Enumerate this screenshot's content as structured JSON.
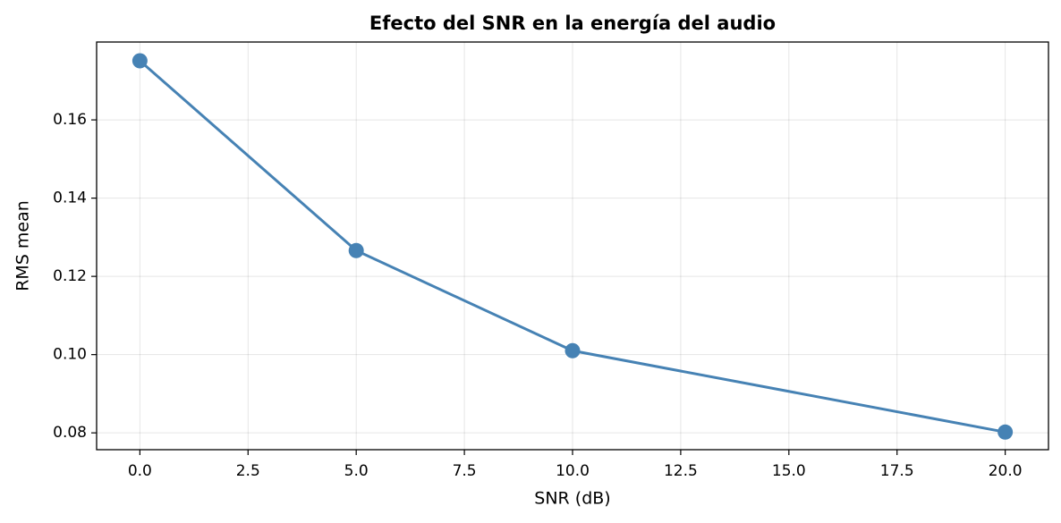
{
  "chart_data": {
    "type": "line",
    "title": "Efecto del SNR en la energía del audio",
    "x_label": "SNR (dB)",
    "y_label": "RMS mean",
    "x": [
      0,
      5,
      10,
      20
    ],
    "series": [
      {
        "name": "RMS mean",
        "color": "#4682b4",
        "values": [
          0.1751,
          0.1266,
          0.101,
          0.0802
        ]
      }
    ],
    "xlim": [
      -1,
      21
    ],
    "xticks": [
      {
        "value": 0,
        "label": "0.0"
      },
      2.5,
      {
        "value": 5,
        "label": "5.0"
      },
      7.5,
      {
        "value": 10,
        "label": "10.0"
      },
      12.5,
      {
        "value": 15,
        "label": "15.0"
      },
      17.5,
      {
        "value": 20,
        "label": "20.0"
      }
    ],
    "ylim": [
      0.0757,
      0.1799
    ],
    "yticks": [
      0.08,
      {
        "value": 0.1,
        "label": "0.10"
      },
      0.12,
      0.14,
      0.16
    ],
    "grid": true
  }
}
